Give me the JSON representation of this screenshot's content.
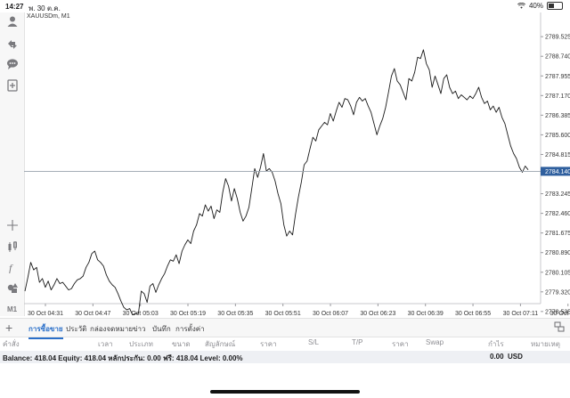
{
  "status_bar": {
    "time": "14:27",
    "date": "พ. 30 ต.ค.",
    "battery": "40%",
    "battery_level": 0.4
  },
  "chart": {
    "symbol": "XAUUSDm, M1",
    "current_price": "2784.140",
    "current_price_value": 2784.14,
    "y_range": [
      2778.85,
      2790.35
    ],
    "price_ticks": [
      "2789.525",
      "2788.740",
      "2787.955",
      "2787.170",
      "2786.385",
      "2785.600",
      "2784.815",
      "2784.140",
      "2783.245",
      "2782.460",
      "2781.675",
      "2780.890",
      "2780.105",
      "2779.320",
      "2778.535"
    ],
    "time_labels": [
      "30 Oct 04:31",
      "30 Oct 04:47",
      "30 Oct 05:03",
      "30 Oct 05:19",
      "30 Oct 05:35",
      "30 Oct 05:51",
      "30 Oct 06:07",
      "30 Oct 06:23",
      "30 Oct 06:39",
      "30 Oct 06:55",
      "30 Oct 07:11",
      "30 Oct 07:27"
    ],
    "prices": [
      2779.35,
      2779.9,
      2780.5,
      2780.2,
      2780.3,
      2779.7,
      2779.85,
      2779.5,
      2779.75,
      2779.4,
      2779.6,
      2779.85,
      2779.65,
      2779.7,
      2779.55,
      2779.4,
      2779.45,
      2779.65,
      2779.8,
      2779.85,
      2779.95,
      2780.3,
      2780.5,
      2780.85,
      2780.95,
      2780.6,
      2780.5,
      2780.35,
      2780.0,
      2779.75,
      2779.6,
      2779.5,
      2779.25,
      2778.95,
      2778.7,
      2778.6,
      2778.65,
      2778.4,
      2778.45,
      2778.45,
      2779.35,
      2779.25,
      2778.9,
      2779.55,
      2779.65,
      2779.3,
      2779.6,
      2779.85,
      2780.05,
      2780.35,
      2780.6,
      2780.55,
      2780.8,
      2780.45,
      2780.95,
      2781.2,
      2781.4,
      2781.25,
      2781.75,
      2782.0,
      2782.45,
      2782.35,
      2782.8,
      2782.55,
      2782.75,
      2782.25,
      2782.6,
      2782.5,
      2783.3,
      2783.85,
      2783.55,
      2782.95,
      2783.45,
      2783.05,
      2782.5,
      2782.15,
      2782.35,
      2782.7,
      2783.45,
      2784.25,
      2783.9,
      2784.3,
      2784.85,
      2784.15,
      2784.25,
      2784.1,
      2783.75,
      2783.25,
      2782.85,
      2782.0,
      2781.55,
      2781.75,
      2781.6,
      2782.4,
      2783.1,
      2783.7,
      2784.4,
      2784.55,
      2785.05,
      2785.5,
      2785.35,
      2785.8,
      2785.95,
      2786.1,
      2786.0,
      2786.45,
      2786.15,
      2786.55,
      2786.9,
      2786.7,
      2787.05,
      2787.0,
      2786.75,
      2786.4,
      2786.9,
      2787.1,
      2786.95,
      2787.05,
      2786.75,
      2786.5,
      2786.05,
      2785.6,
      2785.95,
      2786.25,
      2786.7,
      2787.3,
      2787.95,
      2788.25,
      2787.75,
      2787.6,
      2787.3,
      2787.0,
      2787.85,
      2787.75,
      2788.1,
      2788.7,
      2788.65,
      2789.0,
      2788.45,
      2788.2,
      2787.5,
      2787.95,
      2787.6,
      2787.25,
      2787.85,
      2788.0,
      2787.5,
      2787.25,
      2787.35,
      2787.05,
      2787.2,
      2787.1,
      2787.0,
      2787.15,
      2787.05,
      2787.25,
      2787.5,
      2787.1,
      2786.85,
      2786.95,
      2786.6,
      2786.75,
      2786.5,
      2786.7,
      2786.3,
      2786.05,
      2785.6,
      2785.15,
      2784.85,
      2784.65,
      2784.3,
      2784.1,
      2784.35,
      2784.2
    ]
  },
  "left_toolbar": {
    "icons": [
      "account-icon",
      "trade-icon",
      "chat-icon",
      "new-order-icon",
      "crosshair-icon",
      "indicators-icon",
      "function-icon",
      "objects-icon"
    ],
    "timeframe": "M1"
  },
  "bottom_tabs": [
    "การซื้อขาย",
    "ประวัติ",
    "กล่องจดหมาย",
    "ข่าว",
    "บันทึก",
    "การตั้งค่า"
  ],
  "columns": [
    "คำสั่ง",
    "เวลา",
    "ประเภท",
    "ขนาด",
    "สัญลักษณ์",
    "ราคา",
    "S/L",
    "T/P",
    "ราคา",
    "Swap",
    "กำไร",
    "หมายเหตุ"
  ],
  "balance": {
    "text": "Balance: 418.04 Equity: 418.04 หลักประกัน: 0.00 ฟรี: 418.04 Level: 0.00%",
    "profit": "0.00",
    "currency": "USD"
  },
  "colors": {
    "accent": "#2a6fc9",
    "price_line": "#1a1a1a",
    "price_tag": "#2f5f9e"
  }
}
